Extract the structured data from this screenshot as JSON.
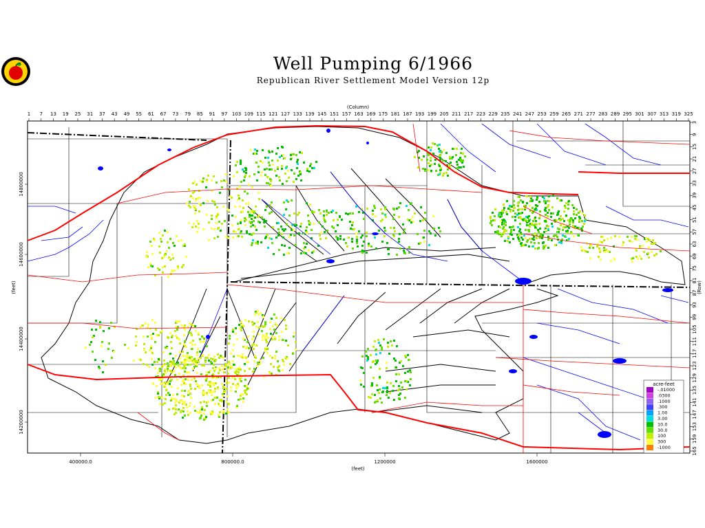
{
  "header": {
    "title": "Well Pumping   6/1966",
    "subtitle": "Republican River Settlement Model Version 12p",
    "logo": "apple-logo"
  },
  "axes": {
    "column_label": "(Column)",
    "column_ticks": [
      "1",
      "7",
      "13",
      "19",
      "25",
      "31",
      "37",
      "43",
      "49",
      "55",
      "61",
      "67",
      "73",
      "79",
      "85",
      "91",
      "97",
      "103",
      "109",
      "115",
      "121",
      "127",
      "133",
      "139",
      "145",
      "151",
      "157",
      "163",
      "169",
      "175",
      "181",
      "187",
      "193",
      "199",
      "205",
      "211",
      "217",
      "223",
      "229",
      "235",
      "241",
      "247",
      "253",
      "259",
      "265",
      "271",
      "277",
      "283",
      "289",
      "295",
      "301",
      "307",
      "313",
      "319",
      "325"
    ],
    "row_label": "(Row)",
    "row_ticks": [
      "3",
      "9",
      "15",
      "21",
      "27",
      "33",
      "39",
      "45",
      "51",
      "57",
      "63",
      "69",
      "75",
      "81",
      "87",
      "93",
      "99",
      "105",
      "111",
      "117",
      "123",
      "129",
      "135",
      "141",
      "147",
      "153",
      "159",
      "165"
    ],
    "x_label": "(feet)",
    "x_ticks": [
      "400000.0",
      "800000.0",
      "1200000",
      "1600000"
    ],
    "y_label": "(feet)",
    "y_ticks": [
      "14800000",
      "14600000",
      "14400000",
      "14200000"
    ]
  },
  "legend": {
    "title": "acre-feet",
    "entries": [
      {
        "label": "-.01000",
        "color": "#a000c8"
      },
      {
        "label": ".0300",
        "color": "#d040e0"
      },
      {
        "label": ".1000",
        "color": "#9060f0"
      },
      {
        "label": ".300",
        "color": "#4040ff"
      },
      {
        "label": "1.00",
        "color": "#00a0ff"
      },
      {
        "label": "3.00",
        "color": "#00e0e0"
      },
      {
        "label": "10.0",
        "color": "#00c000"
      },
      {
        "label": "30.0",
        "color": "#60e000"
      },
      {
        "label": "100",
        "color": "#c0f000"
      },
      {
        "label": "300",
        "color": "#ffff40"
      },
      {
        "label": "-1000",
        "color": "#ff8000"
      }
    ]
  },
  "colors": {
    "rivers": "#0000ff",
    "roads": "#ff0000",
    "boundaries": "#000000",
    "pumping_high": "#ffff40",
    "pumping_mid": "#00c000"
  }
}
